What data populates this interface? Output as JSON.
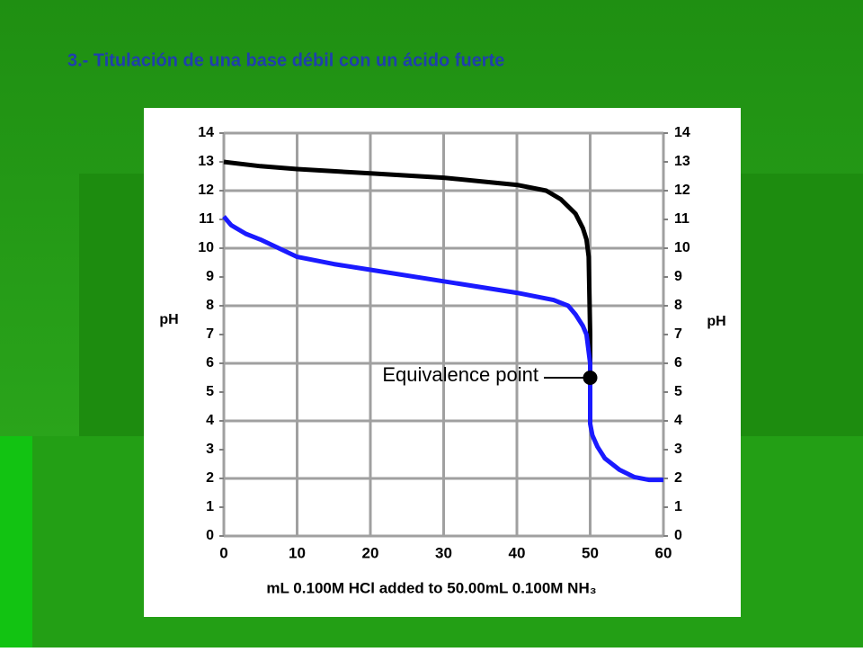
{
  "slide": {
    "title": "3.- Titulación de una base débil con un ácido fuerte"
  },
  "chart_data": {
    "type": "line",
    "xlabel": "mL 0.100M HCl added to 50.00mL 0.100M NH₃",
    "ylabel": "pH",
    "y2label": "pH",
    "xlim": [
      0,
      60
    ],
    "xticks": [
      0,
      10,
      20,
      30,
      40,
      50,
      60
    ],
    "ylim": [
      0,
      14
    ],
    "yticks": [
      0,
      1,
      2,
      3,
      4,
      5,
      6,
      7,
      8,
      9,
      10,
      11,
      12,
      13,
      14
    ],
    "y2lim": [
      0,
      14
    ],
    "y2ticks": [
      0,
      1,
      2,
      3,
      4,
      5,
      6,
      7,
      8,
      9,
      10,
      11,
      12,
      13,
      14
    ],
    "grid_yticks": [
      0,
      2,
      4,
      6,
      8,
      10,
      12,
      14
    ],
    "grid": true,
    "series": [
      {
        "color": "#000000",
        "x": [
          0,
          5,
          10,
          20,
          30,
          40,
          44,
          46,
          48,
          49,
          49.5,
          49.8,
          50,
          50
        ],
        "values": [
          13.0,
          12.85,
          12.75,
          12.6,
          12.45,
          12.2,
          12.0,
          11.7,
          11.2,
          10.7,
          10.3,
          9.7,
          7.0,
          4.0
        ]
      },
      {
        "color": "#1a1aff",
        "x": [
          0,
          1,
          3,
          5,
          10,
          15,
          20,
          30,
          40,
          45,
          47,
          48,
          49,
          49.5,
          50,
          50,
          50.3,
          51,
          52,
          54,
          56,
          58,
          60
        ],
        "values": [
          11.1,
          10.8,
          10.5,
          10.3,
          9.7,
          9.45,
          9.25,
          8.85,
          8.45,
          8.2,
          8.0,
          7.7,
          7.3,
          7.0,
          6.0,
          3.9,
          3.5,
          3.1,
          2.7,
          2.3,
          2.05,
          1.95,
          1.95
        ]
      }
    ],
    "annotations": [
      {
        "text": "Equivalence point",
        "x": 50,
        "y": 5.5
      }
    ]
  }
}
